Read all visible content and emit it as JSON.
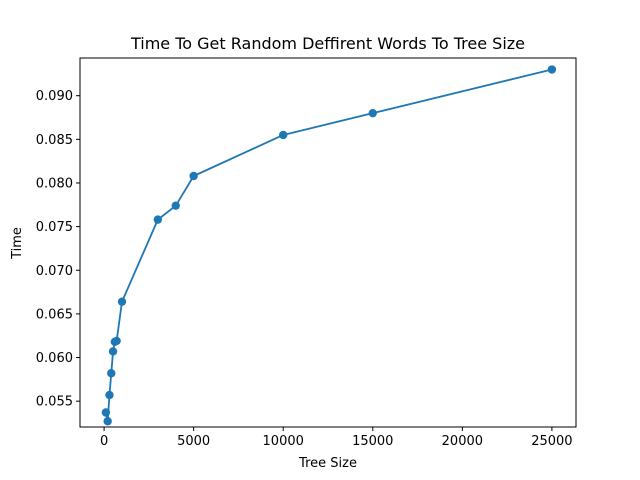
{
  "chart_data": {
    "type": "line",
    "title": "Time To Get Random Deffirent Words To Tree Size",
    "xlabel": "Tree Size",
    "ylabel": "Time",
    "xlim": [
      -1345,
      26345
    ],
    "ylim": [
      0.05204,
      0.09432
    ],
    "x_ticks": [
      0,
      5000,
      10000,
      15000,
      20000,
      25000
    ],
    "x_tick_labels": [
      "0",
      "5000",
      "10000",
      "15000",
      "20000",
      "25000"
    ],
    "y_ticks": [
      0.055,
      0.06,
      0.065,
      0.07,
      0.075,
      0.08,
      0.085,
      0.09
    ],
    "y_tick_labels": [
      "0.055",
      "0.060",
      "0.065",
      "0.070",
      "0.075",
      "0.080",
      "0.085",
      "0.090"
    ],
    "grid": false,
    "colors": {
      "series": "#1f77b4",
      "axis": "#000000",
      "background": "#ffffff"
    },
    "series": [
      {
        "marker": "circle",
        "x": [
          100,
          200,
          300,
          400,
          500,
          600,
          700,
          1000,
          3000,
          4000,
          5000,
          10000,
          15000,
          25000
        ],
        "y": [
          0.0537,
          0.0527,
          0.0557,
          0.0582,
          0.0607,
          0.0618,
          0.0619,
          0.0664,
          0.0758,
          0.0774,
          0.0808,
          0.0855,
          0.088,
          0.093
        ]
      }
    ]
  }
}
